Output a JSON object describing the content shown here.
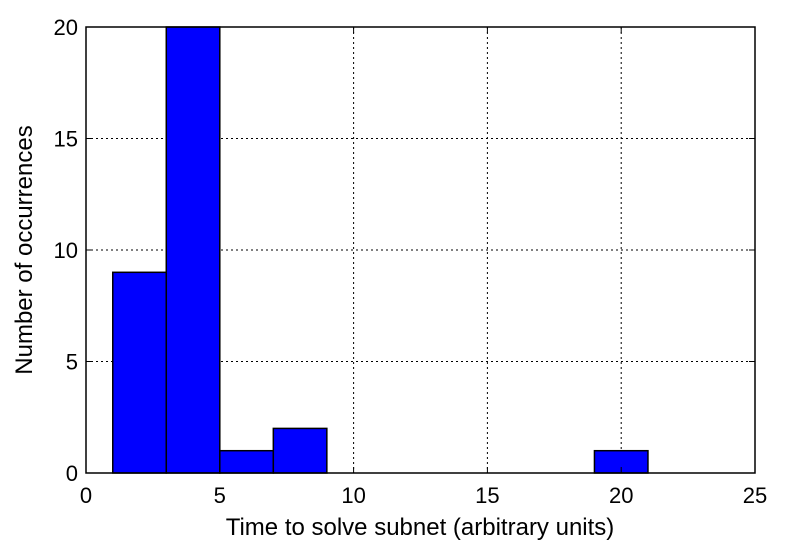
{
  "chart_data": {
    "type": "bar",
    "xlabel": "Time to solve subnet (arbitrary units)",
    "ylabel": "Number of occurrences",
    "xlim": [
      0,
      25
    ],
    "ylim": [
      0,
      20
    ],
    "xticks": [
      0,
      5,
      10,
      15,
      20,
      25
    ],
    "yticks": [
      0,
      5,
      10,
      15,
      20
    ],
    "grid": true,
    "bar_color": "#0000ff",
    "bins": [
      {
        "x0": 1,
        "x1": 3,
        "count": 9
      },
      {
        "x0": 3,
        "x1": 5,
        "count": 20
      },
      {
        "x0": 5,
        "x1": 7,
        "count": 1
      },
      {
        "x0": 7,
        "x1": 9,
        "count": 2
      },
      {
        "x0": 19,
        "x1": 21,
        "count": 1
      }
    ]
  }
}
